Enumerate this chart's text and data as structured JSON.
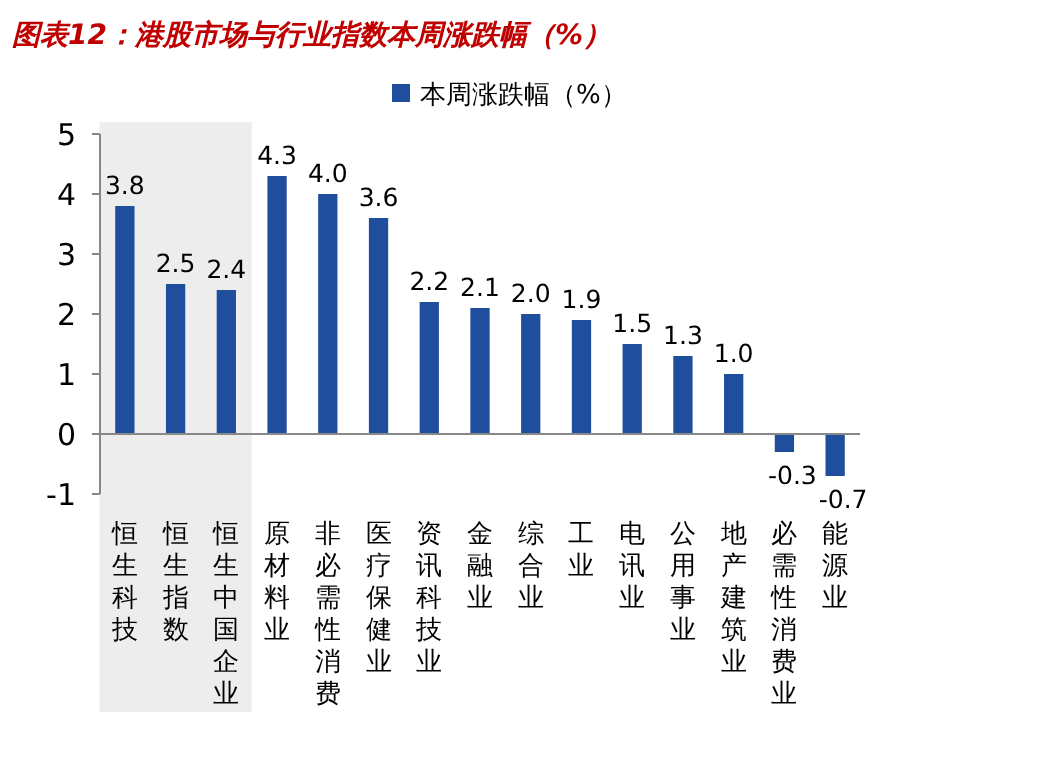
{
  "chart_data": {
    "type": "bar",
    "title": "图表12：港股市场与行业指数本周涨跌幅（%）",
    "categories": [
      "恒生科技",
      "恒生指数",
      "恒生中国企业",
      "原材料业",
      "非必需性消费",
      "医疗保健业",
      "资讯科技业",
      "金融业",
      "综合业",
      "工业",
      "电讯业",
      "公用事业",
      "地产建筑业",
      "必需性消费业",
      "能源业"
    ],
    "series": [
      {
        "name": "本周涨跌幅（%）",
        "color": "#1f4e9c",
        "values": [
          3.8,
          2.5,
          2.4,
          4.3,
          4.0,
          3.6,
          2.2,
          2.1,
          2.0,
          1.9,
          1.5,
          1.3,
          1.0,
          -0.3,
          -0.7
        ],
        "value_labels": [
          "3.8",
          "2.5",
          "2.4",
          "4.3",
          "4.0",
          "3.6",
          "2.2",
          "2.1",
          "2.0",
          "1.9",
          "1.5",
          "1.3",
          "1.0",
          "-0.3",
          "-0.7"
        ]
      }
    ],
    "ylim": [
      -1,
      5
    ],
    "yticks": [
      -1,
      0,
      1,
      2,
      3,
      4,
      5
    ],
    "legend": "top",
    "bands": [
      {
        "axis": "x",
        "from": "恒生科技",
        "to": "恒生中国企业",
        "color": "#ededed"
      }
    ]
  }
}
